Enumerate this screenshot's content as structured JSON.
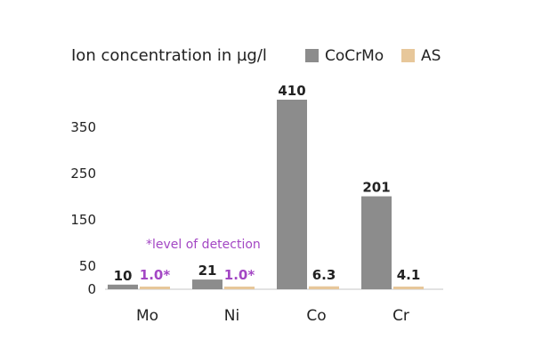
{
  "chart_data": {
    "type": "bar",
    "title": "Ion concentration in µg/l",
    "categories": [
      "Mo",
      "Ni",
      "Co",
      "Cr"
    ],
    "series": [
      {
        "name": "CoCrMo",
        "values": [
          10,
          21,
          410,
          201
        ],
        "labels": [
          "10",
          "21",
          "410",
          "201"
        ],
        "color": "#8c8c8c",
        "label_color": "#222222"
      },
      {
        "name": "AS",
        "values": [
          1.0,
          1.0,
          6.3,
          4.1
        ],
        "labels": [
          "1.0*",
          "1.0*",
          "6.3",
          "4.1"
        ],
        "color": "#e7c79a",
        "label_colors": [
          "#a347c4",
          "#a347c4",
          "#222222",
          "#222222"
        ]
      }
    ],
    "ylim": [
      0,
      410
    ],
    "yticks": [
      0,
      50,
      150,
      250,
      350
    ],
    "annotation": {
      "text": "*level of detection",
      "color": "#a347c4"
    },
    "grid": false,
    "legend": "top-right"
  }
}
